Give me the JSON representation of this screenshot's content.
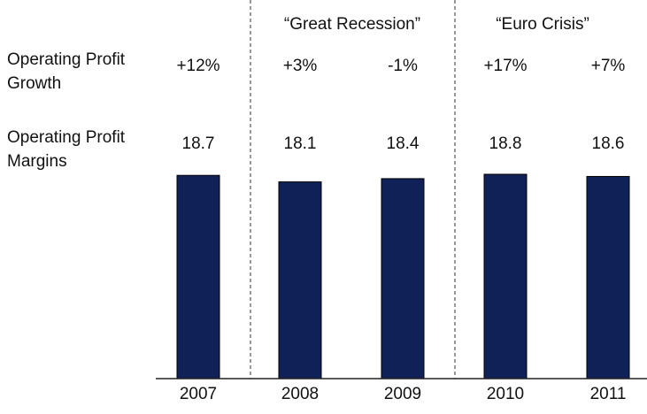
{
  "chart_data": {
    "type": "bar",
    "categories": [
      "2007",
      "2008",
      "2009",
      "2010",
      "2011"
    ],
    "values": [
      18.7,
      18.1,
      18.4,
      18.8,
      18.6
    ],
    "value_labels": [
      "18.7",
      "18.1",
      "18.4",
      "18.8",
      "18.6"
    ],
    "row_labels": {
      "growth": [
        "Operating Profit",
        "Growth"
      ],
      "margins": [
        "Operating Profit",
        "Margins"
      ]
    },
    "growth_labels": [
      "+12%",
      "+3%",
      "-1%",
      "+17%",
      "+7%"
    ],
    "periods": [
      {
        "label": "“Great Recession”",
        "start": "2008",
        "end": "2009"
      },
      {
        "label": "“Euro Crisis”",
        "start": "2010",
        "end": "2011"
      }
    ],
    "bar_color": "#0f2157",
    "ylim": [
      0,
      18.8
    ],
    "grid": false,
    "legend": "none"
  }
}
